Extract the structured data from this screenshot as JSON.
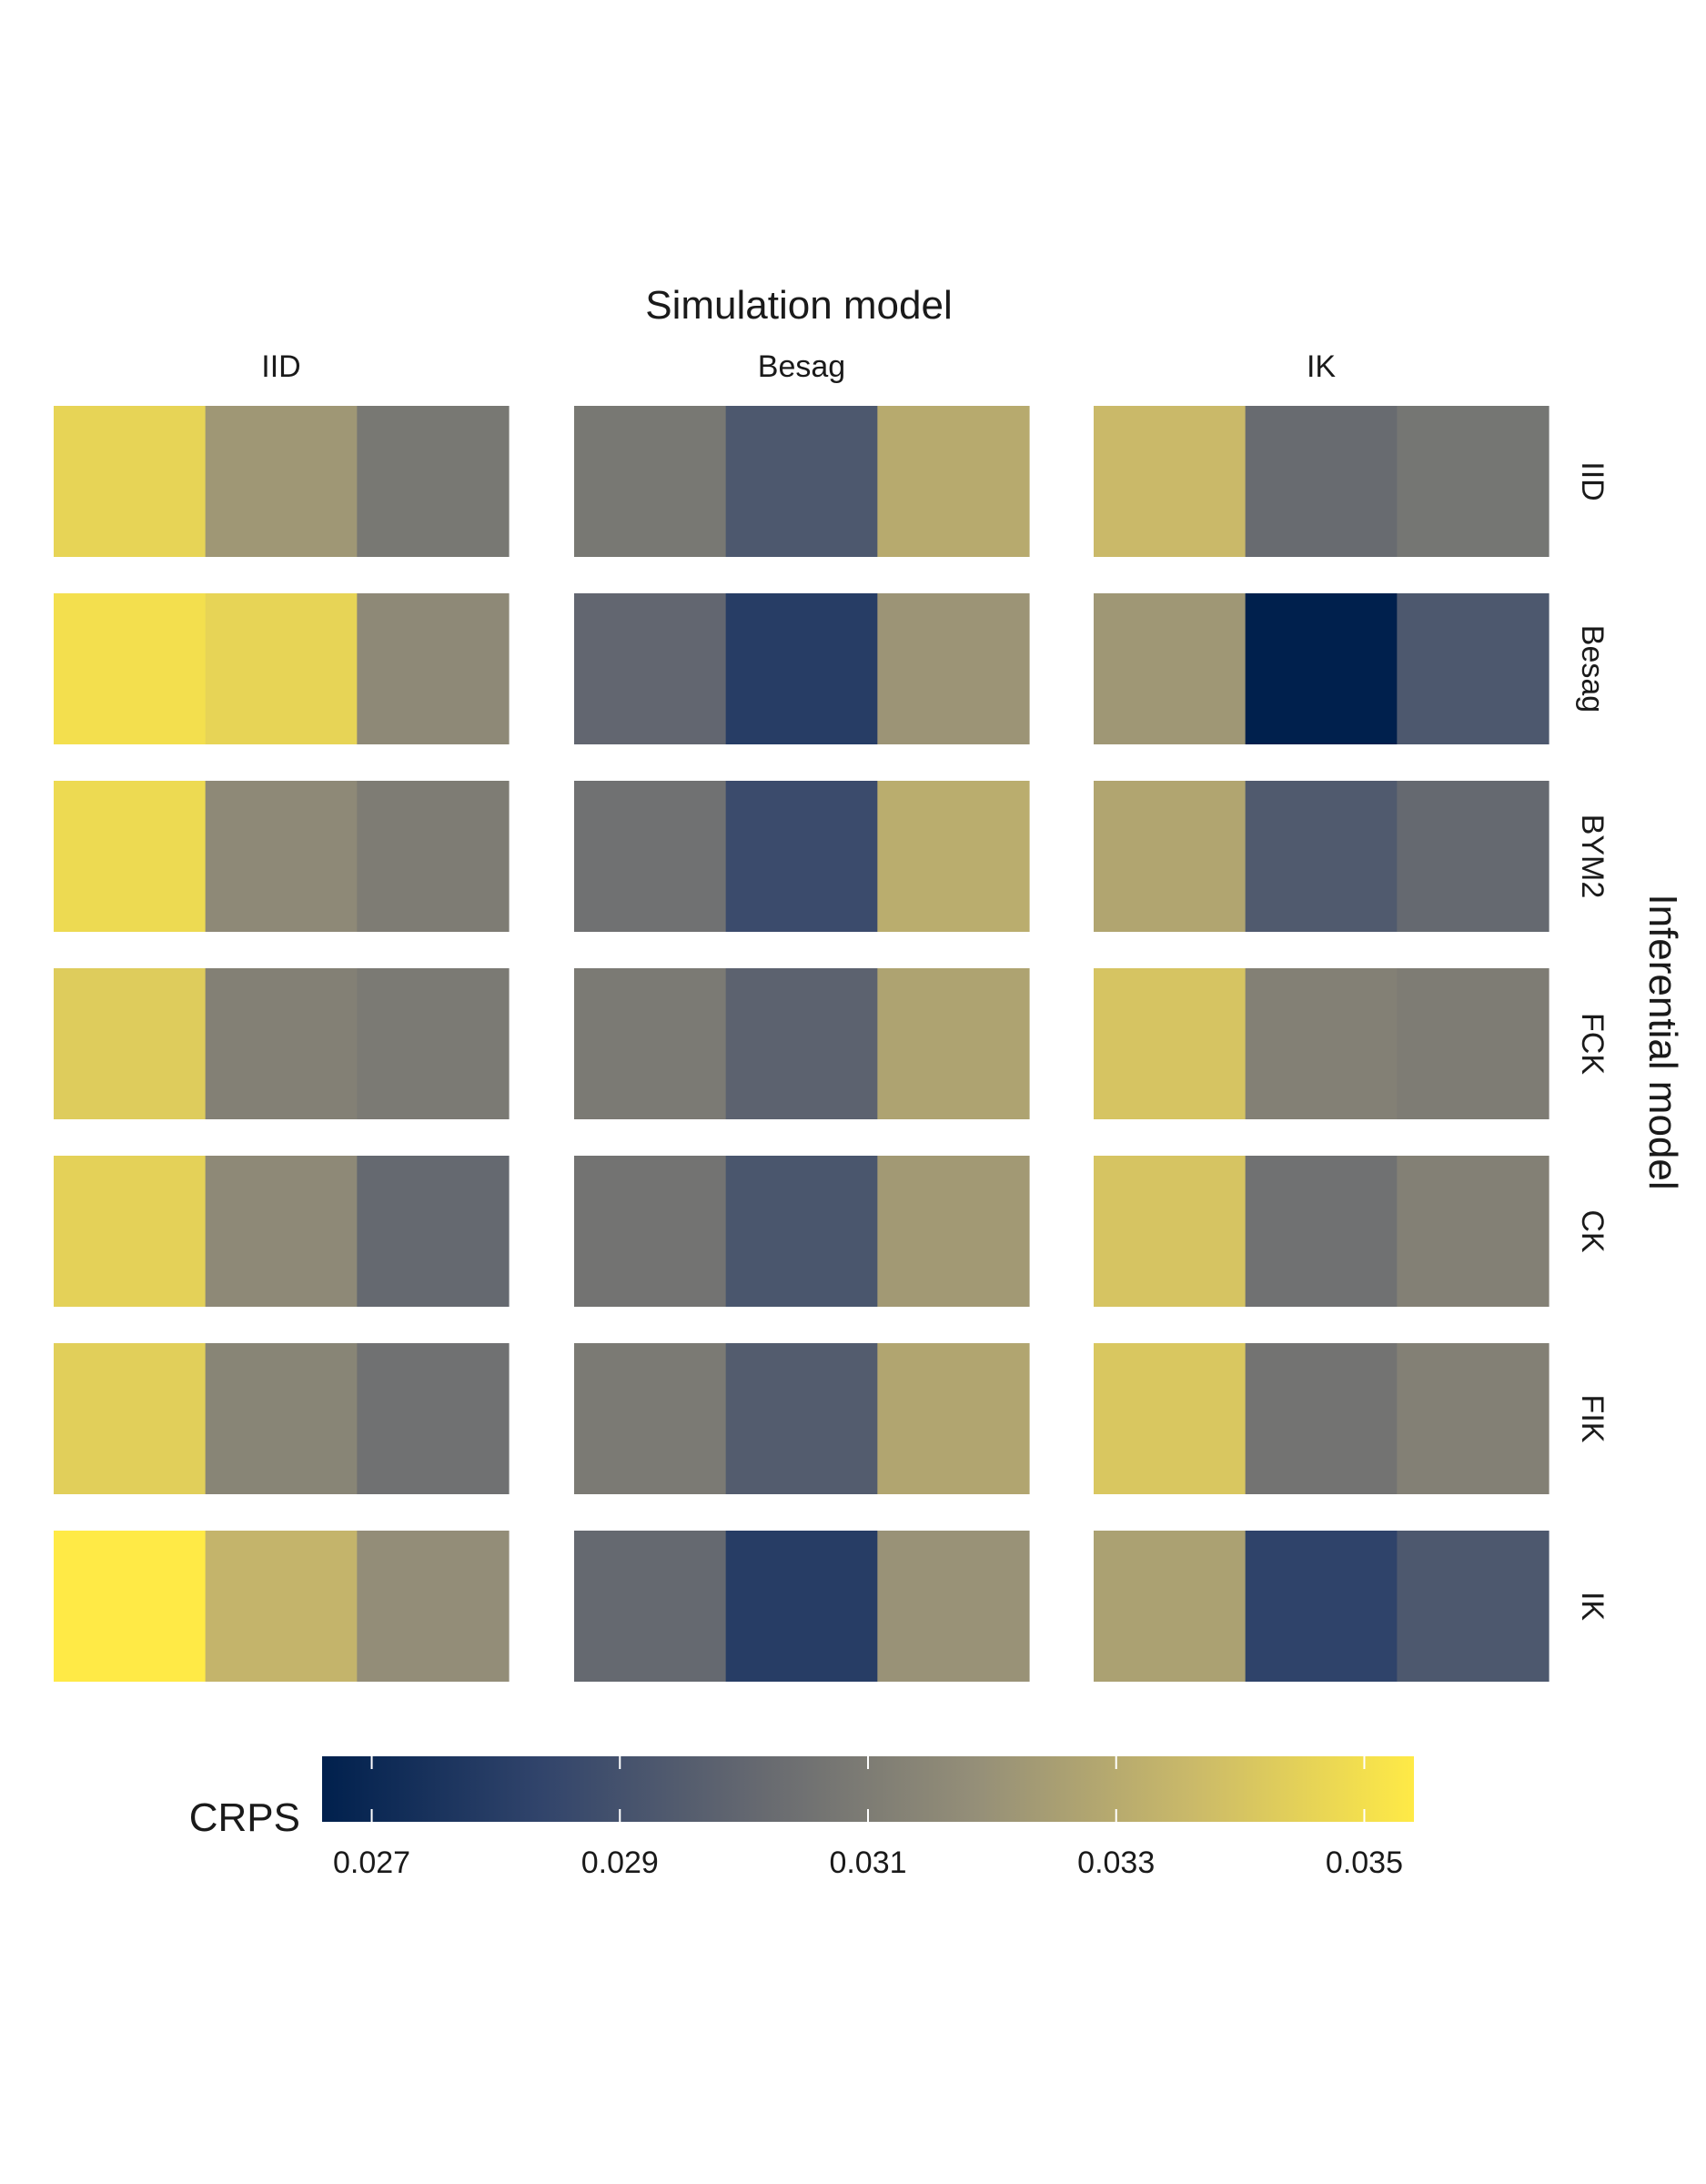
{
  "chart_data": {
    "type": "heatmap",
    "title": "Simulation model",
    "strip_right_label": "Inferential model",
    "simulation_models": [
      "IID",
      "Besag",
      "IK"
    ],
    "inferential_models": [
      "IID",
      "Besag",
      "BYM2",
      "FCK",
      "CK",
      "FIK",
      "IK"
    ],
    "cells_per_panel": 3,
    "values": [
      [
        [
          0.0346,
          0.0322,
          0.0308
        ],
        [
          0.0308,
          0.0293,
          0.033
        ],
        [
          0.0336,
          0.0302,
          0.0307
        ]
      ],
      [
        [
          0.035,
          0.0346,
          0.0316
        ],
        [
          0.03,
          0.028,
          0.0321
        ],
        [
          0.0322,
          0.0266,
          0.0293
        ]
      ],
      [
        [
          0.0348,
          0.0316,
          0.031
        ],
        [
          0.0305,
          0.0287,
          0.0331
        ],
        [
          0.0328,
          0.0294,
          0.0301
        ]
      ],
      [
        [
          0.0343,
          0.0312,
          0.0309
        ],
        [
          0.0309,
          0.0298,
          0.0327
        ],
        [
          0.034,
          0.0312,
          0.031
        ]
      ],
      [
        [
          0.0345,
          0.0316,
          0.0301
        ],
        [
          0.0306,
          0.0292,
          0.0323
        ],
        [
          0.034,
          0.0305,
          0.0312
        ]
      ],
      [
        [
          0.0344,
          0.0314,
          0.0305
        ],
        [
          0.0309,
          0.0295,
          0.0328
        ],
        [
          0.0341,
          0.0306,
          0.0312
        ]
      ],
      [
        [
          0.0354,
          0.0334,
          0.0318
        ],
        [
          0.0301,
          0.028,
          0.032
        ],
        [
          0.0326,
          0.0283,
          0.0293
        ]
      ]
    ],
    "legend": {
      "title": "CRPS",
      "min": 0.0266,
      "max": 0.0354,
      "ticks": [
        0.027,
        0.029,
        0.031,
        0.033,
        0.035
      ],
      "tick_labels": [
        "0.027",
        "0.029",
        "0.031",
        "0.033",
        "0.035"
      ],
      "placement": "bottom"
    },
    "colors": [
      "#00204d",
      "#31446b",
      "#666970",
      "#958f78",
      "#cbba69",
      "#ffea46"
    ]
  }
}
